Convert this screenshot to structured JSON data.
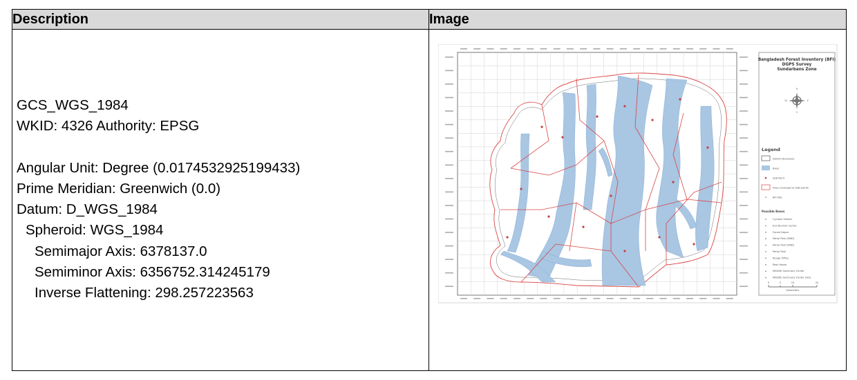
{
  "table": {
    "header_description": "Description",
    "header_image": "Image"
  },
  "description": {
    "gcs": "GCS_WGS_1984",
    "wkid": "WKID: 4326 Authority: EPSG",
    "angular_unit": "Angular Unit: Degree (0.0174532925199433)",
    "prime_meridian": "Prime Meridian: Greenwich (0.0)",
    "datum": "Datum: D_WGS_1984",
    "spheroid": "Spheroid: WGS_1984",
    "semimajor": "Semimajor Axis: 6378137.0",
    "semiminor": "Semiminor Axis: 6356752.314245179",
    "inverse_flattening": "Inverse Flattening: 298.257223563"
  },
  "map": {
    "title_line1": "Bangladesh Forest Inventory (BFI)",
    "title_line2": "DGPS Survey",
    "title_line3": "Sundarbans Zone",
    "compass": {
      "n": "N",
      "s": "S",
      "e": "E",
      "w": "W"
    },
    "legend_title": "Legend",
    "legend_items": [
      "District Boundary",
      "River",
      "SoB Point",
      "Area coverage by SoB points",
      "BFI Plot"
    ],
    "bases_title": "Possible Bases",
    "bases": [
      "Cyclone Shelter",
      "Eco-Tourism Centre",
      "Forest Depot",
      "Petrol Post (RMD)",
      "Petrol Post (EMD)",
      "Petrol Post",
      "Range Office",
      "Rest House",
      "Wildlife Sanctuary Center",
      "Wildlife Sanctuary Center (HQ)"
    ],
    "scale_ticks": [
      "0",
      "5",
      "10",
      "20"
    ],
    "scale_unit": "Kilometers",
    "colors": {
      "river": "#a9c6e3",
      "boundary": "#d94545",
      "land": "#ffffff"
    }
  }
}
